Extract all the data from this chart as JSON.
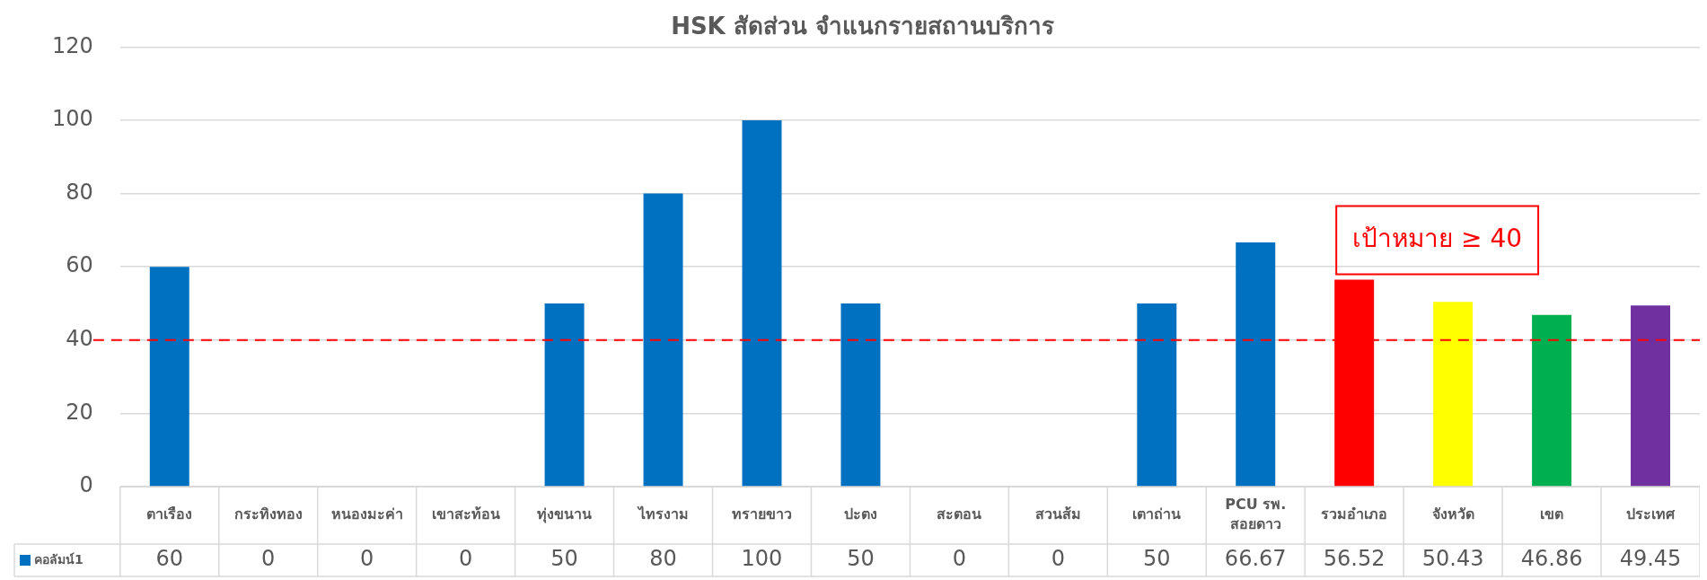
{
  "chart_data": {
    "type": "bar",
    "title": "HSK สัดส่วน จำแนกรายสถานบริการ",
    "categories": [
      "ตาเรือง",
      "กระทิงทอง",
      "หนองมะค่า",
      "เขาสะท้อน",
      "ทุ่งขนาน",
      "ไทรงาม",
      "ทรายขาว",
      "ปะตง",
      "สะตอน",
      "สวนส้ม",
      "เตาถ่าน",
      "PCU รพ. สอยดาว",
      "รวมอำเภอ",
      "จังหวัด",
      "เขต",
      "ประเทศ"
    ],
    "series": [
      {
        "name": "คอลัมน์1",
        "color": "#0070c0",
        "colors": [
          "#0070c0",
          "#0070c0",
          "#0070c0",
          "#0070c0",
          "#0070c0",
          "#0070c0",
          "#0070c0",
          "#0070c0",
          "#0070c0",
          "#0070c0",
          "#0070c0",
          "#0070c0",
          "#ff0000",
          "#ffff00",
          "#00b050",
          "#7030a0"
        ],
        "values": [
          60,
          0,
          0,
          0,
          50,
          80,
          100,
          50,
          0,
          0,
          50,
          66.67,
          56.52,
          50.43,
          46.86,
          49.45
        ]
      }
    ],
    "ylim": [
      0,
      120
    ],
    "yticks": [
      0,
      20,
      40,
      60,
      80,
      100,
      120
    ],
    "grid": "y",
    "legend": "bottom left",
    "data_labels": true,
    "ref_lines": [
      {
        "axis": "y",
        "value": 40,
        "label": "เป้าหมาย ≥ 40",
        "color": "#ff0000",
        "line_style": "dashed"
      }
    ]
  }
}
